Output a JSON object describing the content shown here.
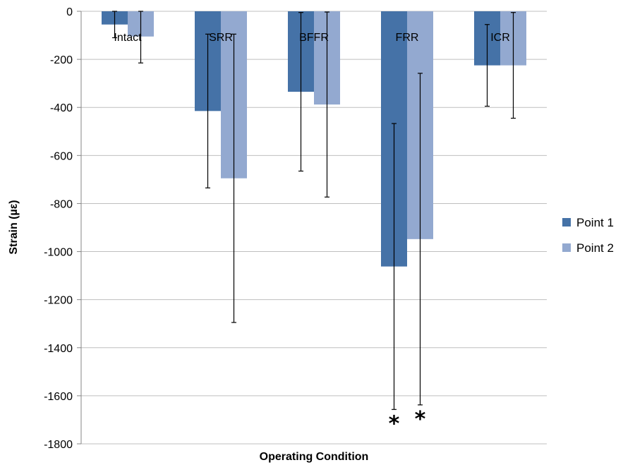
{
  "chart_data": {
    "type": "bar",
    "categories": [
      "Intact",
      "SRR",
      "BFFR",
      "FRR",
      "ICR"
    ],
    "series": [
      {
        "name": "Point 1",
        "color": "#4572a7",
        "values": [
          -55,
          -415,
          -335,
          -1062,
          -225
        ],
        "error": [
          55,
          320,
          330,
          595,
          170
        ]
      },
      {
        "name": "Point 2",
        "color": "#93a9d0",
        "values": [
          -105,
          -695,
          -388,
          -948,
          -225
        ],
        "error": [
          110,
          600,
          385,
          690,
          220
        ]
      }
    ],
    "xlabel": "Operating Condition",
    "ylabel": "Strain (µε)",
    "ylim": [
      -1800,
      0
    ],
    "yticks": [
      0,
      -200,
      -400,
      -600,
      -800,
      -1000,
      -1200,
      -1400,
      -1600,
      -1800
    ],
    "grid": true,
    "legend_position": "right",
    "annotations": [
      {
        "category": "FRR",
        "series": "Point 1",
        "text": "*"
      },
      {
        "category": "FRR",
        "series": "Point 2",
        "text": "*"
      }
    ]
  }
}
